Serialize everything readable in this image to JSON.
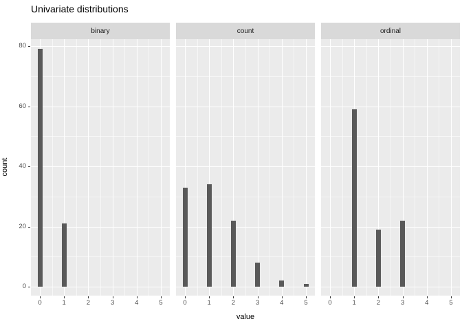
{
  "title": "Univariate distributions",
  "chart_data": {
    "type": "bar",
    "title": "Univariate distributions",
    "xlabel": "value",
    "ylabel": "count",
    "legend": "none",
    "grid": "white major and minor gridlines on gray panel",
    "x_ticks": [
      0,
      1,
      2,
      3,
      4,
      5
    ],
    "y_ticks": [
      0,
      20,
      40,
      60,
      80
    ],
    "x_minor_ticks": [
      0.5,
      1.5,
      2.5,
      3.5,
      4.5
    ],
    "y_minor_ticks": [
      10,
      30,
      50,
      70
    ],
    "xlim": [
      -0.37,
      5.37
    ],
    "ylim": [
      -3,
      82.3
    ],
    "facets": [
      {
        "label": "binary",
        "bars": [
          {
            "x": 0,
            "count": 79
          },
          {
            "x": 1,
            "count": 21
          }
        ]
      },
      {
        "label": "count",
        "bars": [
          {
            "x": 0,
            "count": 33
          },
          {
            "x": 1,
            "count": 34
          },
          {
            "x": 2,
            "count": 22
          },
          {
            "x": 3,
            "count": 8
          },
          {
            "x": 4,
            "count": 2
          },
          {
            "x": 5,
            "count": 1
          }
        ]
      },
      {
        "label": "ordinal",
        "bars": [
          {
            "x": 1,
            "count": 59
          },
          {
            "x": 2,
            "count": 19
          },
          {
            "x": 3,
            "count": 22
          }
        ]
      }
    ]
  },
  "colors": {
    "bar": "#595959",
    "panel_bg": "#EBEBEB",
    "strip_bg": "#D9D9D9",
    "grid": "#FFFFFF",
    "axis_text": "#4D4D4D",
    "strip_text": "#1A1A1A",
    "title_text": "#000000",
    "tick_mark": "#333333",
    "background": "#FFFFFF"
  }
}
